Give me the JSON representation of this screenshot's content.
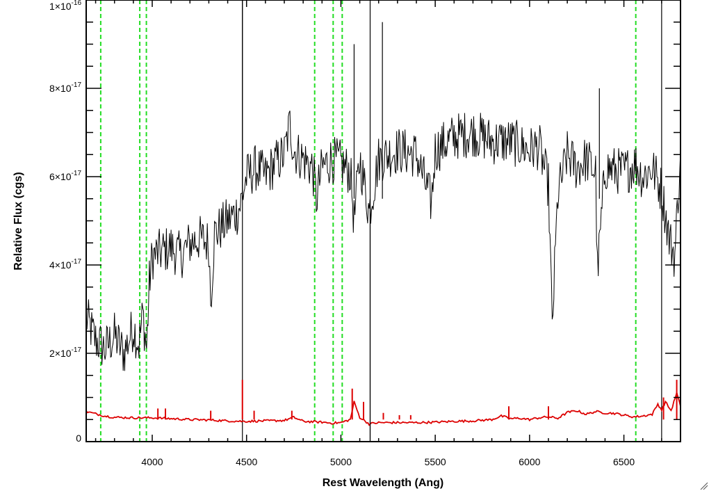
{
  "chart_data": {
    "type": "line",
    "xlabel": "Rest Wavelength (Ang)",
    "ylabel": "Relative Flux (cgs)",
    "xlim": [
      3650,
      6800
    ],
    "ylim": [
      0,
      1e-16
    ],
    "x_ticks": [
      {
        "value": 4000,
        "label": "4000"
      },
      {
        "value": 4500,
        "label": "4500"
      },
      {
        "value": 5000,
        "label": "5000"
      },
      {
        "value": 5500,
        "label": "5500"
      },
      {
        "value": 6000,
        "label": "6000"
      },
      {
        "value": 6500,
        "label": "6500"
      }
    ],
    "y_ticks": [
      {
        "value": 0,
        "mant": "0",
        "exp": ""
      },
      {
        "value": 2e-17,
        "mant": "2×10",
        "exp": "-17"
      },
      {
        "value": 4e-17,
        "mant": "4×10",
        "exp": "-17"
      },
      {
        "value": 6e-17,
        "mant": "6×10",
        "exp": "-17"
      },
      {
        "value": 8e-17,
        "mant": "8×10",
        "exp": "-17"
      },
      {
        "value": 1e-16,
        "mant": "1×10",
        "exp": "-16"
      }
    ],
    "series": [
      {
        "color": "#000000",
        "x": [
          3650,
          3700,
          3750,
          3800,
          3850,
          3900,
          3930,
          3950,
          3970,
          3985,
          4000,
          4050,
          4100,
          4150,
          4200,
          4250,
          4300,
          4310,
          4330,
          4400,
          4450,
          4470,
          4490,
          4500,
          4550,
          4600,
          4650,
          4700,
          4730,
          4750,
          4800,
          4850,
          4870,
          4900,
          4950,
          5000,
          5050,
          5070,
          5100,
          5150,
          5200,
          5250,
          5300,
          5400,
          5480,
          5500,
          5600,
          5700,
          5800,
          5900,
          6000,
          6050,
          6100,
          6120,
          6150,
          6200,
          6250,
          6300,
          6350,
          6360,
          6400,
          6500,
          6560,
          6600,
          6650,
          6700,
          6740,
          6770,
          6800
        ],
        "y": [
          2.8e-17,
          2.3e-17,
          2.1e-17,
          2.4e-17,
          2e-17,
          2.6e-17,
          2.2e-17,
          2.9e-17,
          2.1e-17,
          3.6e-17,
          4.2e-17,
          4.3e-17,
          4.4e-17,
          4.2e-17,
          4.5e-17,
          4.6e-17,
          4.5e-17,
          3.2e-17,
          4.7e-17,
          5e-17,
          5.2e-17,
          5.4e-17,
          5.8e-17,
          6e-17,
          6.2e-17,
          6e-17,
          6.3e-17,
          6.5e-17,
          7.2e-17,
          6.6e-17,
          6.4e-17,
          6.2e-17,
          5.5e-17,
          6.2e-17,
          6.4e-17,
          6.3e-17,
          6.1e-17,
          5e-17,
          6.4e-17,
          5.2e-17,
          6.4e-17,
          6.5e-17,
          6.6e-17,
          6.5e-17,
          5.4e-17,
          6.6e-17,
          6.9e-17,
          7e-17,
          6.8e-17,
          6.8e-17,
          6.6e-17,
          6.7e-17,
          5.8e-17,
          2.6e-17,
          5.6e-17,
          6.5e-17,
          6.2e-17,
          6.4e-17,
          6.1e-17,
          3.8e-17,
          6.2e-17,
          6.1e-17,
          6.3e-17,
          6e-17,
          6.2e-17,
          5.7e-17,
          4.6e-17,
          4.2e-17,
          6.6e-17
        ]
      },
      {
        "color": "#dd0000",
        "x": [
          3650,
          3700,
          3750,
          3800,
          3900,
          4000,
          4100,
          4200,
          4300,
          4400,
          4480,
          4500,
          4600,
          4700,
          4750,
          4800,
          4900,
          4950,
          5000,
          5050,
          5070,
          5100,
          5150,
          5200,
          5300,
          5400,
          5500,
          5600,
          5700,
          5800,
          5850,
          5900,
          5950,
          6000,
          6050,
          6100,
          6150,
          6200,
          6250,
          6300,
          6350,
          6400,
          6450,
          6500,
          6550,
          6600,
          6650,
          6680,
          6700,
          6720,
          6750,
          6780,
          6800
        ],
        "y": [
          6.8e-18,
          6.3e-18,
          5.8e-18,
          5.5e-18,
          5.4e-18,
          5.4e-18,
          5.2e-18,
          5e-18,
          4.9e-18,
          4.7e-18,
          4.6e-18,
          4.6e-18,
          4.7e-18,
          4.8e-18,
          5.5e-18,
          4.6e-18,
          4.4e-18,
          4.2e-18,
          4.3e-18,
          5e-18,
          9e-18,
          5.5e-18,
          4e-18,
          4.3e-18,
          4.3e-18,
          4.3e-18,
          4.4e-18,
          4.6e-18,
          4.7e-18,
          5e-18,
          5.8e-18,
          5.2e-18,
          5.3e-18,
          5e-18,
          5.4e-18,
          5.6e-18,
          5.3e-18,
          6.6e-18,
          7e-18,
          6.2e-18,
          6.8e-18,
          6.5e-18,
          6.4e-18,
          6e-18,
          5.6e-18,
          5.8e-18,
          6.2e-18,
          8.5e-18,
          7.2e-18,
          9e-18,
          7e-18,
          1.1e-17,
          8e-18
        ]
      }
    ],
    "spikes": [
      {
        "x": 4478,
        "y": 1e-16,
        "color": "#000000"
      },
      {
        "x": 4478,
        "y": 1.4e-17,
        "color": "#dd0000"
      },
      {
        "x": 5070,
        "y": 9e-17,
        "color": "#000000"
      },
      {
        "x": 5155,
        "y": 0,
        "color": "#000000"
      },
      {
        "x": 5220,
        "y": 9.5e-17,
        "color": "#000000"
      },
      {
        "x": 6370,
        "y": 8e-17,
        "color": "#000000"
      },
      {
        "x": 4030,
        "y": 7.5e-18,
        "color": "#dd0000"
      },
      {
        "x": 4070,
        "y": 7.5e-18,
        "color": "#dd0000"
      },
      {
        "x": 4310,
        "y": 7e-18,
        "color": "#dd0000"
      },
      {
        "x": 4540,
        "y": 7e-18,
        "color": "#dd0000"
      },
      {
        "x": 4740,
        "y": 7e-18,
        "color": "#dd0000"
      },
      {
        "x": 5060,
        "y": 1.2e-17,
        "color": "#dd0000"
      },
      {
        "x": 5120,
        "y": 9e-18,
        "color": "#dd0000"
      },
      {
        "x": 5225,
        "y": 6.5e-18,
        "color": "#dd0000"
      },
      {
        "x": 5310,
        "y": 6e-18,
        "color": "#dd0000"
      },
      {
        "x": 5370,
        "y": 6e-18,
        "color": "#dd0000"
      },
      {
        "x": 5890,
        "y": 8e-18,
        "color": "#dd0000"
      },
      {
        "x": 6100,
        "y": 8e-18,
        "color": "#dd0000"
      },
      {
        "x": 6710,
        "y": 1e-17,
        "color": "#dd0000"
      },
      {
        "x": 6780,
        "y": 1.4e-17,
        "color": "#dd0000"
      }
    ],
    "vertical_markers": {
      "color": "#22dd22",
      "x": [
        3727,
        3934,
        3969,
        4861,
        4959,
        5007,
        6563
      ]
    },
    "boundary_lines": {
      "color": "#000000",
      "x": [
        4478,
        5155,
        6700
      ]
    }
  }
}
